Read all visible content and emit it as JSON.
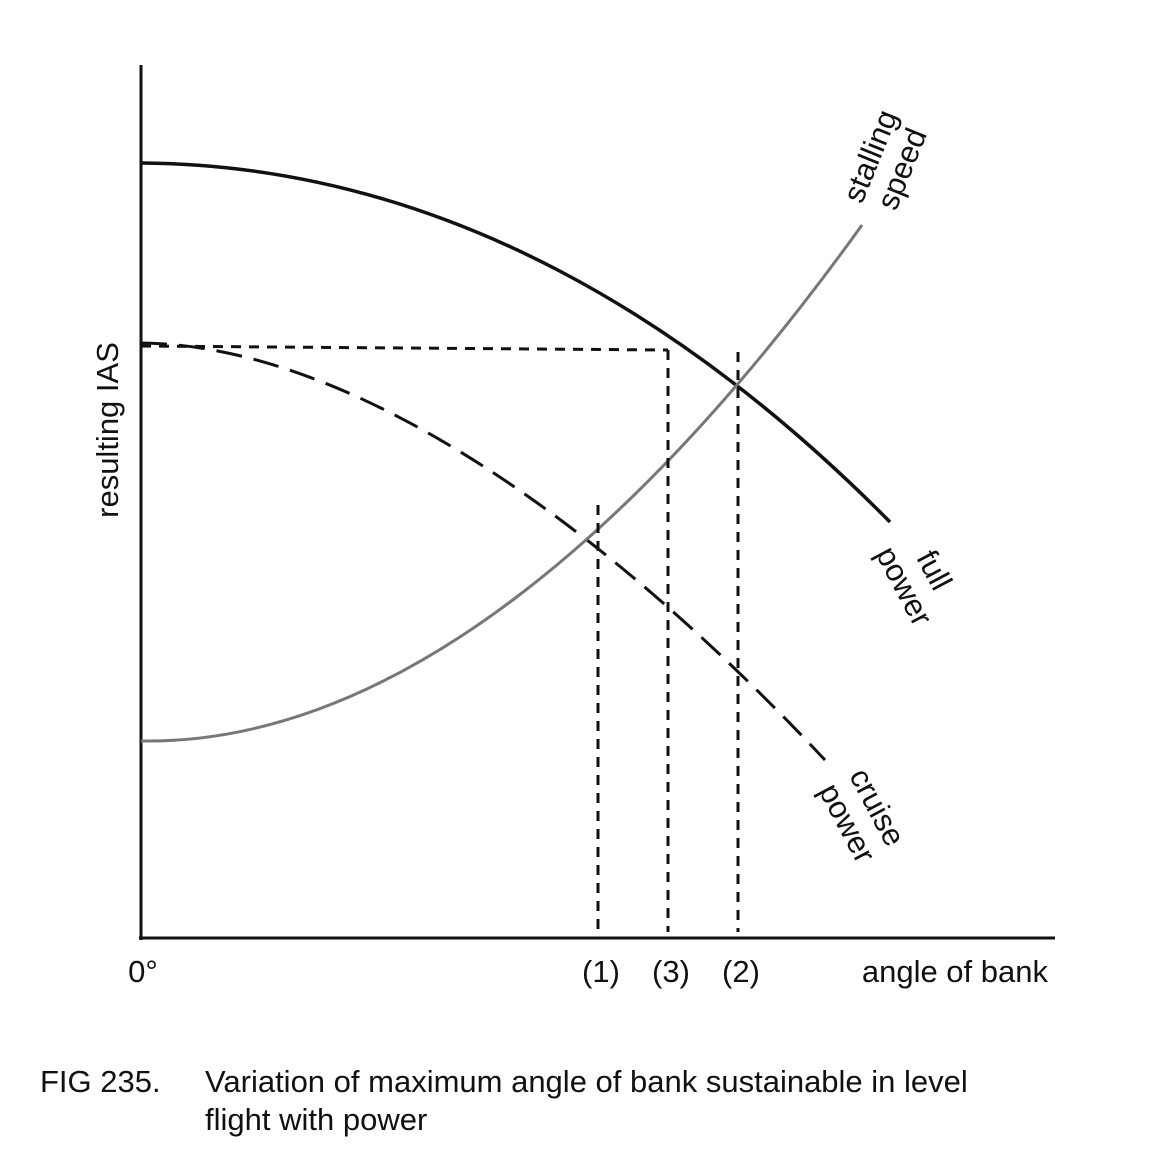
{
  "y_axis": {
    "label": "resulting IAS"
  },
  "x_axis": {
    "origin": "0°",
    "label": "angle of bank",
    "markers": [
      "(1)",
      "(3)",
      "(2)"
    ]
  },
  "curves": {
    "stalling_speed": [
      "stalling",
      "speed"
    ],
    "full_power": [
      "full",
      "power"
    ],
    "cruise_power": [
      "cruise",
      "power"
    ]
  },
  "caption": {
    "number": "FIG 235.",
    "lines": [
      "Variation of maximum angle of bank sustainable in level",
      "flight with power"
    ]
  }
}
